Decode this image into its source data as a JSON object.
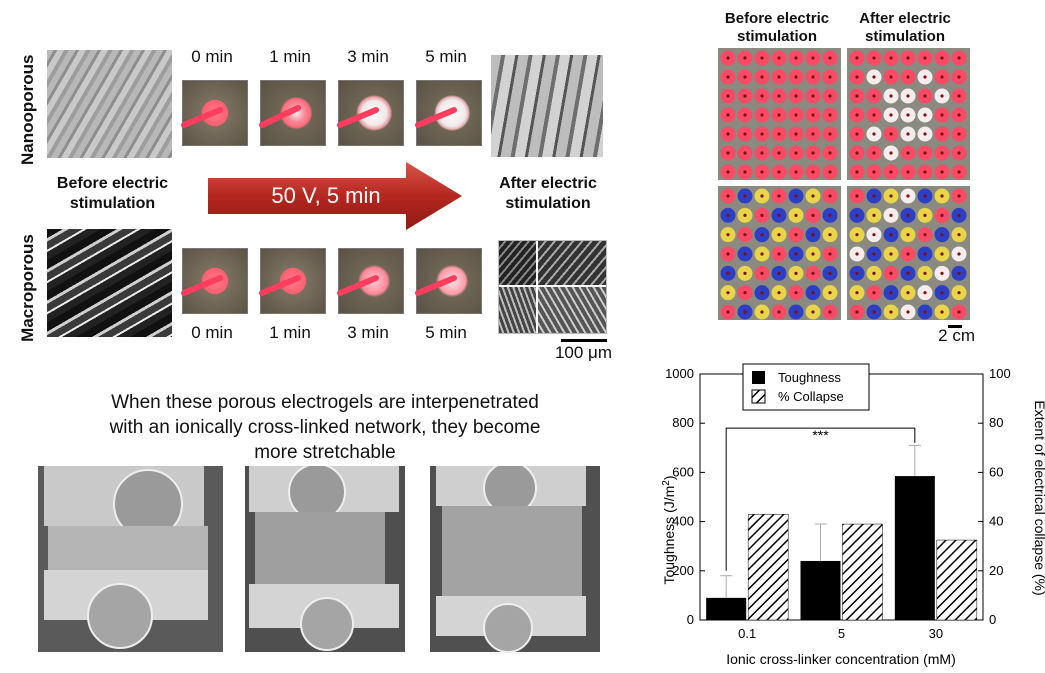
{
  "labels": {
    "nanoporous": "Nanooporous",
    "macroporous": "Macroporous",
    "before_left": [
      "Before electric",
      "stimulation"
    ],
    "after_left": [
      "After electric",
      "stimulation"
    ],
    "arrow": "50 V, 5 min",
    "top_times": [
      "0 min",
      "1 min",
      "3 min",
      "5 min"
    ],
    "bottom_times": [
      "0 min",
      "1 min",
      "3 min",
      "5 min"
    ],
    "scale_sem": "100 μm",
    "plate_before": [
      "Before electric",
      "stimulation"
    ],
    "plate_after": [
      "After electric",
      "stimulation"
    ],
    "scale_plate": "2 cm",
    "stretch_caption": [
      "When these porous electrogels are interpenetrated",
      "with an ionically cross-linked network, they become",
      "more stretchable"
    ]
  },
  "chart_data": {
    "type": "bar",
    "categories": [
      "0.1",
      "5",
      "30"
    ],
    "series": [
      {
        "name": "Toughness",
        "values": [
          90,
          240,
          585
        ],
        "errors": [
          90,
          150,
          125
        ],
        "axis": "left",
        "pattern": "solid"
      },
      {
        "name": "% Collapse",
        "values": [
          43,
          39,
          32.5
        ],
        "axis": "right",
        "pattern": "hatch"
      }
    ],
    "xlabel": "Ionic cross-linker concentration (mM)",
    "ylabel": "Toughness (J/m",
    "ylabel_sup": "2",
    "ylabel_right": "Extent of electrical collapse (%)",
    "ylim": [
      0,
      1000
    ],
    "ylim_right": [
      0,
      100
    ],
    "yticks": [
      "0",
      "200",
      "400",
      "600",
      "800",
      "1000"
    ],
    "yticks_right": [
      "0",
      "20",
      "40",
      "60",
      "80",
      "100"
    ],
    "significance": "***",
    "legend_position": "top-center",
    "grid": false
  }
}
